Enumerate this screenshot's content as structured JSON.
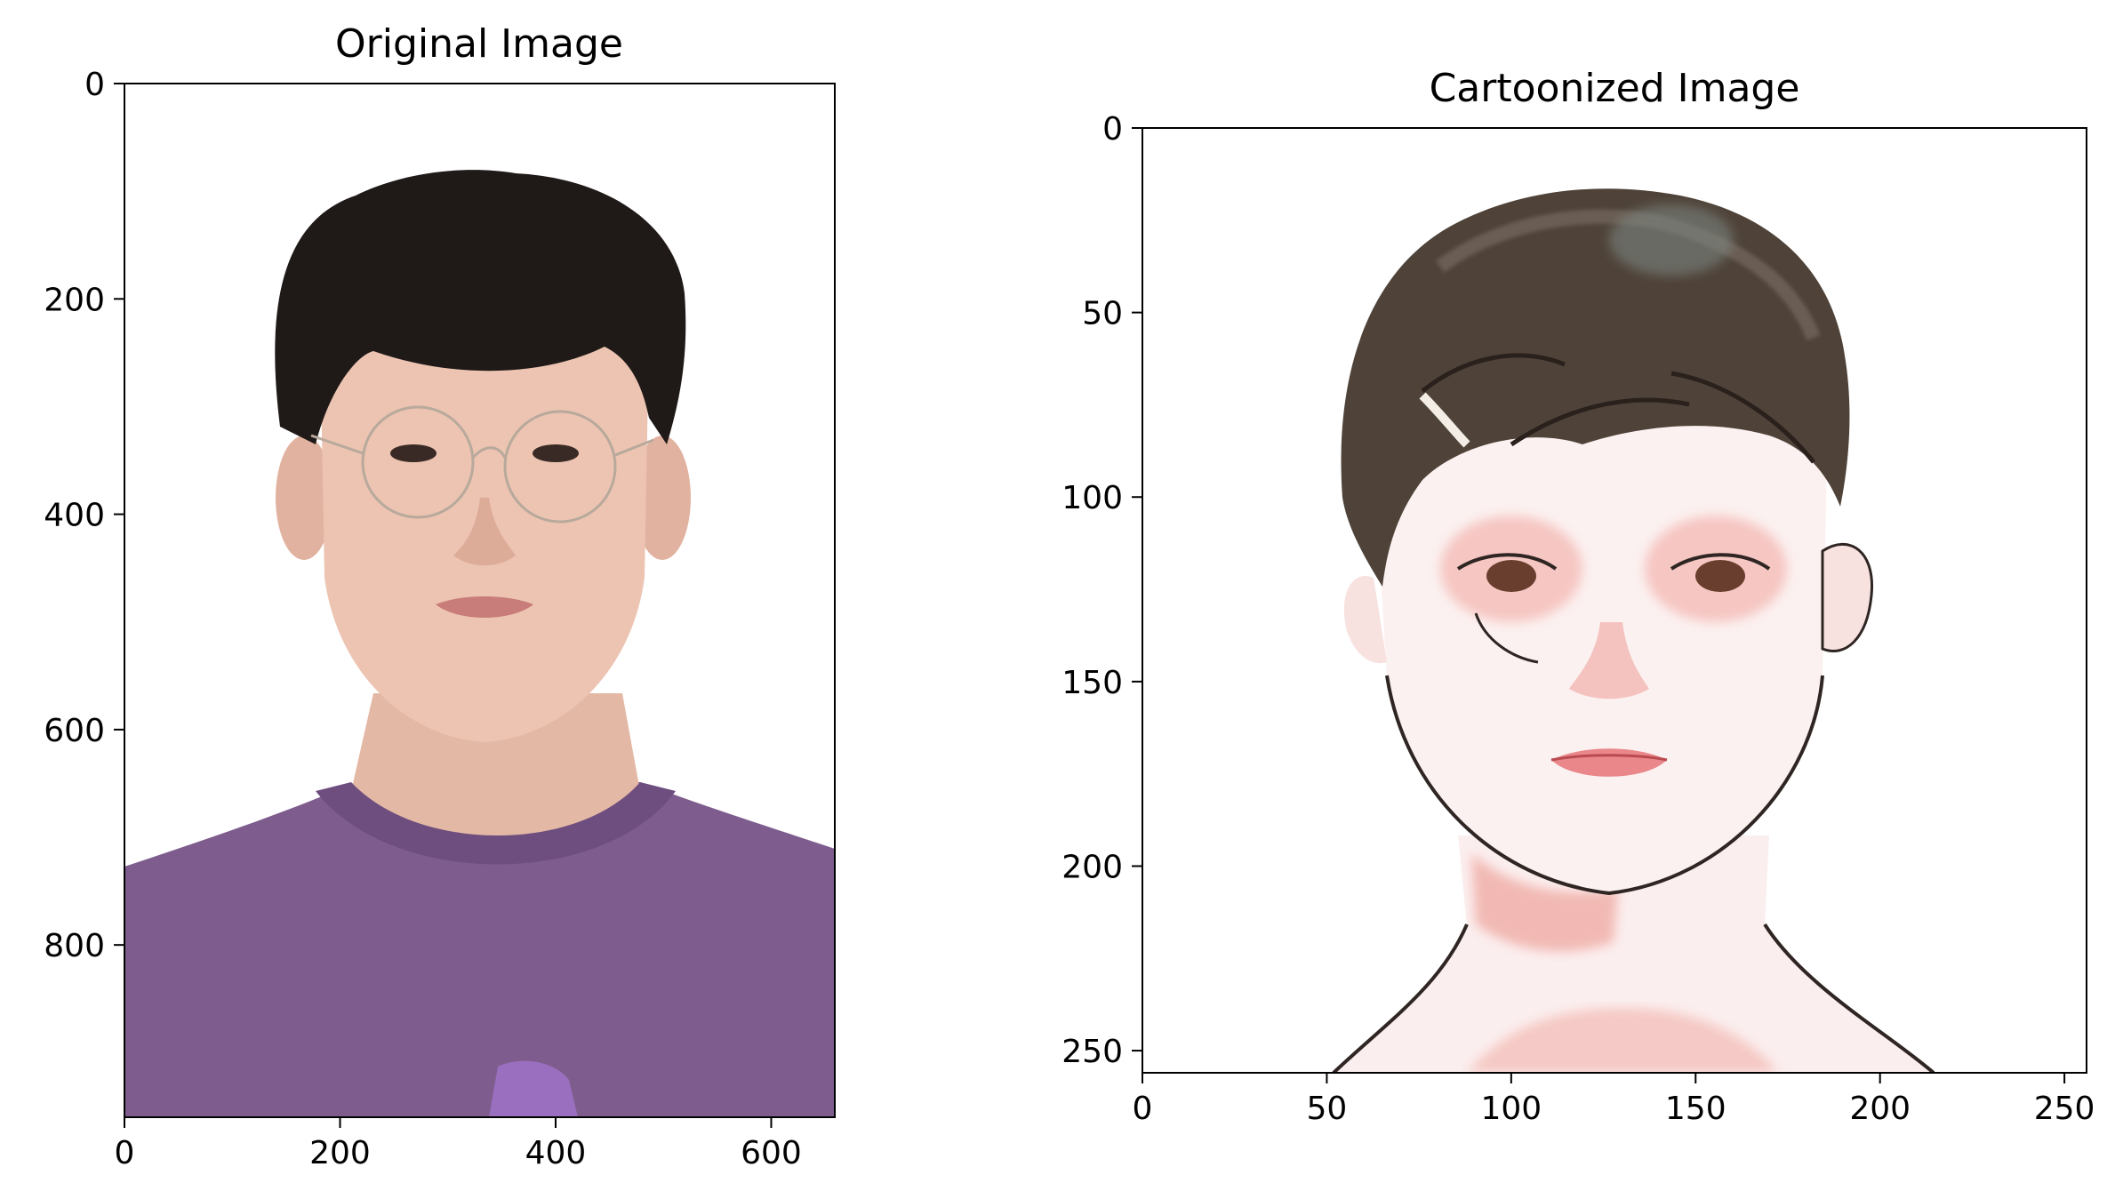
{
  "chart_data": [
    {
      "type": "image",
      "title": "Original Image",
      "xlim": [
        0,
        659
      ],
      "ylim": [
        0,
        960
      ],
      "y_inverted": true,
      "xticks": [
        0,
        200,
        400,
        600
      ],
      "yticks": [
        0,
        200,
        400,
        600,
        800
      ],
      "colors": {
        "background": "#ffffff",
        "hair": "#1f1a18",
        "skin": "#e8c0ad",
        "shirt": "#7e5d8e",
        "glasses": "#b8a99c"
      }
    },
    {
      "type": "image",
      "title": "Cartoonized Image",
      "xlim": [
        0,
        256
      ],
      "ylim": [
        0,
        256
      ],
      "y_inverted": true,
      "xticks": [
        0,
        50,
        100,
        150,
        200,
        250
      ],
      "yticks": [
        0,
        50,
        100,
        150,
        200,
        250
      ],
      "colors": {
        "background": "#ffffff",
        "hair": "#4f4339",
        "skin": "#fbefee",
        "blush": "#f4b7b2",
        "lips": "#e9878a",
        "outline": "#2f2623"
      }
    }
  ]
}
